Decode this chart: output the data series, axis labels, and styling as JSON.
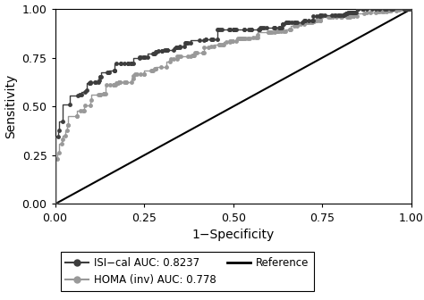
{
  "xlabel": "1−Specificity",
  "ylabel": "Sensitivity",
  "xlim": [
    0.0,
    1.0
  ],
  "ylim": [
    0.0,
    1.0
  ],
  "xticks": [
    0.0,
    0.25,
    0.5,
    0.75,
    1.0
  ],
  "yticks": [
    0.0,
    0.25,
    0.5,
    0.75,
    1.0
  ],
  "isi_color": "#3d3d3d",
  "homa_color": "#999999",
  "ref_color": "#000000",
  "isi_label": "ISI−cal AUC: 0.8237",
  "homa_label": "HOMA (inv) AUC: 0.778",
  "ref_label": "Reference",
  "isi_auc": 0.8237,
  "homa_auc": 0.778,
  "background_color": "#ffffff",
  "marker_size": 3.5,
  "linewidth": 1.0,
  "n_steps_isi": 180,
  "n_steps_homa": 180,
  "seed_isi": 13,
  "seed_homa": 99
}
